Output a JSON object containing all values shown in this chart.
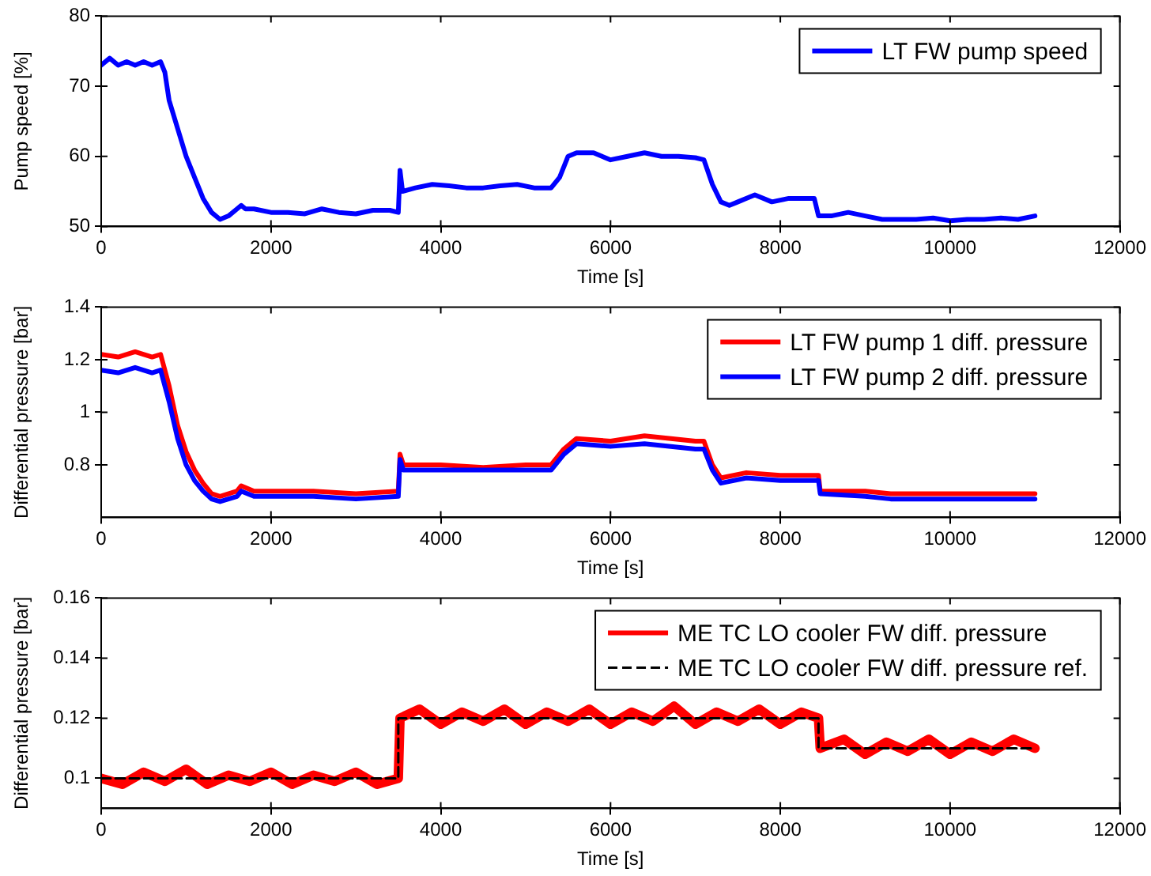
{
  "chart_data": [
    {
      "type": "line",
      "xlabel": "Time [s]",
      "ylabel": "Pump speed [%]",
      "xlim": [
        0,
        12000
      ],
      "xticks": [
        0,
        2000,
        4000,
        6000,
        8000,
        10000,
        12000
      ],
      "ylim": [
        50,
        80
      ],
      "yticks": [
        50,
        60,
        70,
        80
      ],
      "grid": false,
      "legend": "top right",
      "marker": "none",
      "series": [
        {
          "name": "LT FW pump speed",
          "color": "#0000ff",
          "line_style": "solid",
          "x": [
            0,
            100,
            200,
            300,
            400,
            500,
            600,
            700,
            750,
            800,
            900,
            1000,
            1100,
            1200,
            1300,
            1400,
            1500,
            1600,
            1650,
            1700,
            1800,
            2000,
            2200,
            2400,
            2600,
            2800,
            3000,
            3200,
            3400,
            3500,
            3520,
            3550,
            3700,
            3900,
            4100,
            4300,
            4500,
            4700,
            4900,
            5100,
            5300,
            5400,
            5500,
            5600,
            5800,
            6000,
            6200,
            6400,
            6600,
            6800,
            7000,
            7100,
            7200,
            7300,
            7400,
            7500,
            7700,
            7900,
            8100,
            8400,
            8450,
            8600,
            8800,
            9000,
            9200,
            9400,
            9600,
            9800,
            10000,
            10200,
            10400,
            10600,
            10800,
            11000
          ],
          "values": [
            73,
            74,
            73,
            73.5,
            73,
            73.5,
            73,
            73.5,
            72,
            68,
            64,
            60,
            57,
            54,
            52,
            51,
            51.5,
            52.5,
            53,
            52.5,
            52.5,
            52,
            52,
            51.8,
            52.5,
            52,
            51.8,
            52.3,
            52.3,
            52,
            58,
            55,
            55.5,
            56,
            55.8,
            55.5,
            55.5,
            55.8,
            56,
            55.5,
            55.5,
            57,
            60,
            60.5,
            60.5,
            59.5,
            60,
            60.5,
            60,
            60,
            59.8,
            59.5,
            56,
            53.5,
            53,
            53.5,
            54.5,
            53.5,
            54,
            54,
            51.5,
            51.5,
            52,
            51.5,
            51,
            51,
            51,
            51.2,
            50.8,
            51,
            51,
            51.2,
            51,
            51.5
          ]
        }
      ]
    },
    {
      "type": "line",
      "xlabel": "Time [s]",
      "ylabel": "Differential pressure [bar]",
      "xlim": [
        0,
        12000
      ],
      "xticks": [
        0,
        2000,
        4000,
        6000,
        8000,
        10000,
        12000
      ],
      "ylim": [
        0.6,
        1.4
      ],
      "yticks": [
        0.8,
        1,
        1.2,
        1.4
      ],
      "grid": false,
      "legend": "top right",
      "marker": "none",
      "series": [
        {
          "name": "LT FW pump 1 diff. pressure",
          "color": "#ff0000",
          "line_style": "solid",
          "x": [
            0,
            200,
            400,
            600,
            700,
            800,
            900,
            1000,
            1100,
            1200,
            1300,
            1400,
            1600,
            1650,
            1800,
            2000,
            2500,
            3000,
            3500,
            3520,
            3560,
            4000,
            4500,
            5000,
            5300,
            5450,
            5600,
            6000,
            6400,
            7000,
            7100,
            7200,
            7300,
            7600,
            8000,
            8450,
            8470,
            9000,
            9300,
            10000,
            11000
          ],
          "values": [
            1.22,
            1.21,
            1.23,
            1.21,
            1.22,
            1.1,
            0.95,
            0.85,
            0.78,
            0.73,
            0.69,
            0.68,
            0.7,
            0.72,
            0.7,
            0.7,
            0.7,
            0.69,
            0.7,
            0.84,
            0.8,
            0.8,
            0.79,
            0.8,
            0.8,
            0.86,
            0.9,
            0.89,
            0.91,
            0.89,
            0.89,
            0.8,
            0.75,
            0.77,
            0.76,
            0.76,
            0.7,
            0.7,
            0.69,
            0.69,
            0.69
          ]
        },
        {
          "name": "LT FW pump 2 diff. pressure",
          "color": "#0000ff",
          "line_style": "solid",
          "x": [
            0,
            200,
            400,
            600,
            700,
            800,
            900,
            1000,
            1100,
            1200,
            1300,
            1400,
            1600,
            1650,
            1800,
            2000,
            2500,
            3000,
            3500,
            3520,
            3560,
            4000,
            4500,
            5000,
            5300,
            5450,
            5600,
            6000,
            6400,
            7000,
            7100,
            7200,
            7300,
            7600,
            8000,
            8450,
            8470,
            9000,
            9300,
            10000,
            11000
          ],
          "values": [
            1.16,
            1.15,
            1.17,
            1.15,
            1.16,
            1.04,
            0.9,
            0.8,
            0.74,
            0.7,
            0.67,
            0.66,
            0.68,
            0.7,
            0.68,
            0.68,
            0.68,
            0.67,
            0.68,
            0.82,
            0.78,
            0.78,
            0.78,
            0.78,
            0.78,
            0.84,
            0.88,
            0.87,
            0.88,
            0.86,
            0.86,
            0.78,
            0.73,
            0.75,
            0.74,
            0.74,
            0.69,
            0.68,
            0.67,
            0.67,
            0.67
          ]
        }
      ]
    },
    {
      "type": "line",
      "xlabel": "Time [s]",
      "ylabel": "Differential pressure [bar]",
      "xlim": [
        0,
        12000
      ],
      "xticks": [
        0,
        2000,
        4000,
        6000,
        8000,
        10000,
        12000
      ],
      "ylim": [
        0.09,
        0.16
      ],
      "yticks": [
        0.1,
        0.12,
        0.14,
        0.16
      ],
      "grid": false,
      "legend": "top right",
      "marker": "none",
      "series": [
        {
          "name": "ME TC LO cooler FW diff. pressure",
          "color": "#ff0000",
          "line_style": "solid",
          "x": [
            0,
            250,
            500,
            750,
            1000,
            1250,
            1500,
            1750,
            2000,
            2250,
            2500,
            2750,
            3000,
            3250,
            3500,
            3520,
            3750,
            4000,
            4250,
            4500,
            4750,
            5000,
            5250,
            5500,
            5750,
            6000,
            6250,
            6500,
            6750,
            7000,
            7250,
            7500,
            7750,
            8000,
            8250,
            8450,
            8470,
            8750,
            9000,
            9250,
            9500,
            9750,
            10000,
            10250,
            10500,
            10750,
            11000
          ],
          "values": [
            0.1,
            0.098,
            0.102,
            0.099,
            0.103,
            0.098,
            0.101,
            0.099,
            0.102,
            0.098,
            0.101,
            0.099,
            0.102,
            0.098,
            0.1,
            0.12,
            0.123,
            0.118,
            0.122,
            0.119,
            0.123,
            0.118,
            0.122,
            0.119,
            0.123,
            0.118,
            0.122,
            0.119,
            0.124,
            0.118,
            0.122,
            0.119,
            0.123,
            0.118,
            0.122,
            0.12,
            0.11,
            0.113,
            0.108,
            0.112,
            0.109,
            0.113,
            0.108,
            0.112,
            0.109,
            0.113,
            0.11
          ]
        },
        {
          "name": "ME TC LO cooler FW diff. pressure ref.",
          "color": "#000000",
          "line_style": "dashed",
          "x": [
            0,
            3500,
            3500,
            8450,
            8450,
            11000
          ],
          "values": [
            0.1,
            0.1,
            0.12,
            0.12,
            0.11,
            0.11
          ]
        }
      ]
    }
  ]
}
